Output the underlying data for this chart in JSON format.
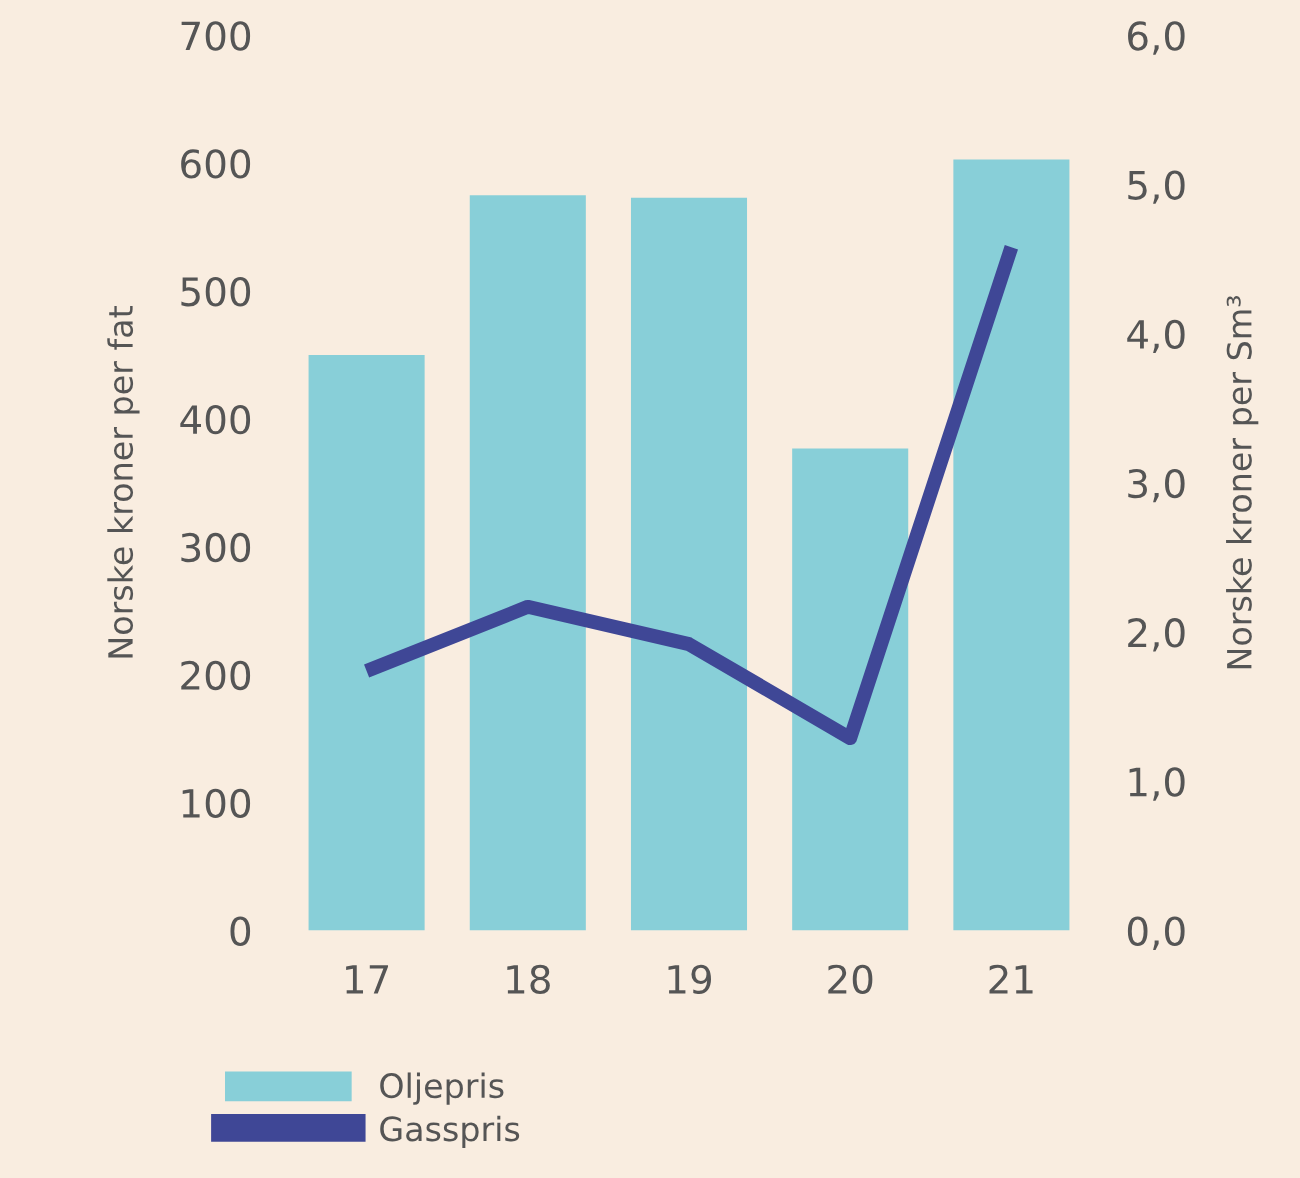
{
  "chart_data": {
    "type": "bar",
    "categories": [
      "17",
      "18",
      "19",
      "20",
      "21"
    ],
    "ylabel": "Norske kroner per fat",
    "y2label": "Norske kroner per Sm³",
    "series": [
      {
        "name": "Oljepris",
        "color": "#88cfd8",
        "values": [
          450,
          575,
          573,
          377,
          603
        ]
      },
      {
        "name": "Gasspris",
        "type": "line",
        "axis": "y2",
        "color": "#3f4796",
        "values": [
          1.74,
          2.17,
          1.92,
          1.29,
          4.58
        ]
      }
    ],
    "ylim": [
      0,
      700
    ],
    "yticks": [
      0,
      100,
      200,
      300,
      400,
      500,
      600,
      700
    ],
    "y2lim": [
      0,
      6
    ],
    "y2ticks": [
      {
        "value": 0,
        "label": "0,0"
      },
      {
        "value": 1,
        "label": "1,0"
      },
      {
        "value": 2,
        "label": "2,0"
      },
      {
        "value": 3,
        "label": "3,0"
      },
      {
        "value": 4,
        "label": "4,0"
      },
      {
        "value": 5,
        "label": "5,0"
      },
      {
        "value": 6,
        "label": "6,0"
      }
    ],
    "grid": false,
    "legend": "bottom left",
    "marker": "none",
    "line_style": "solid"
  }
}
